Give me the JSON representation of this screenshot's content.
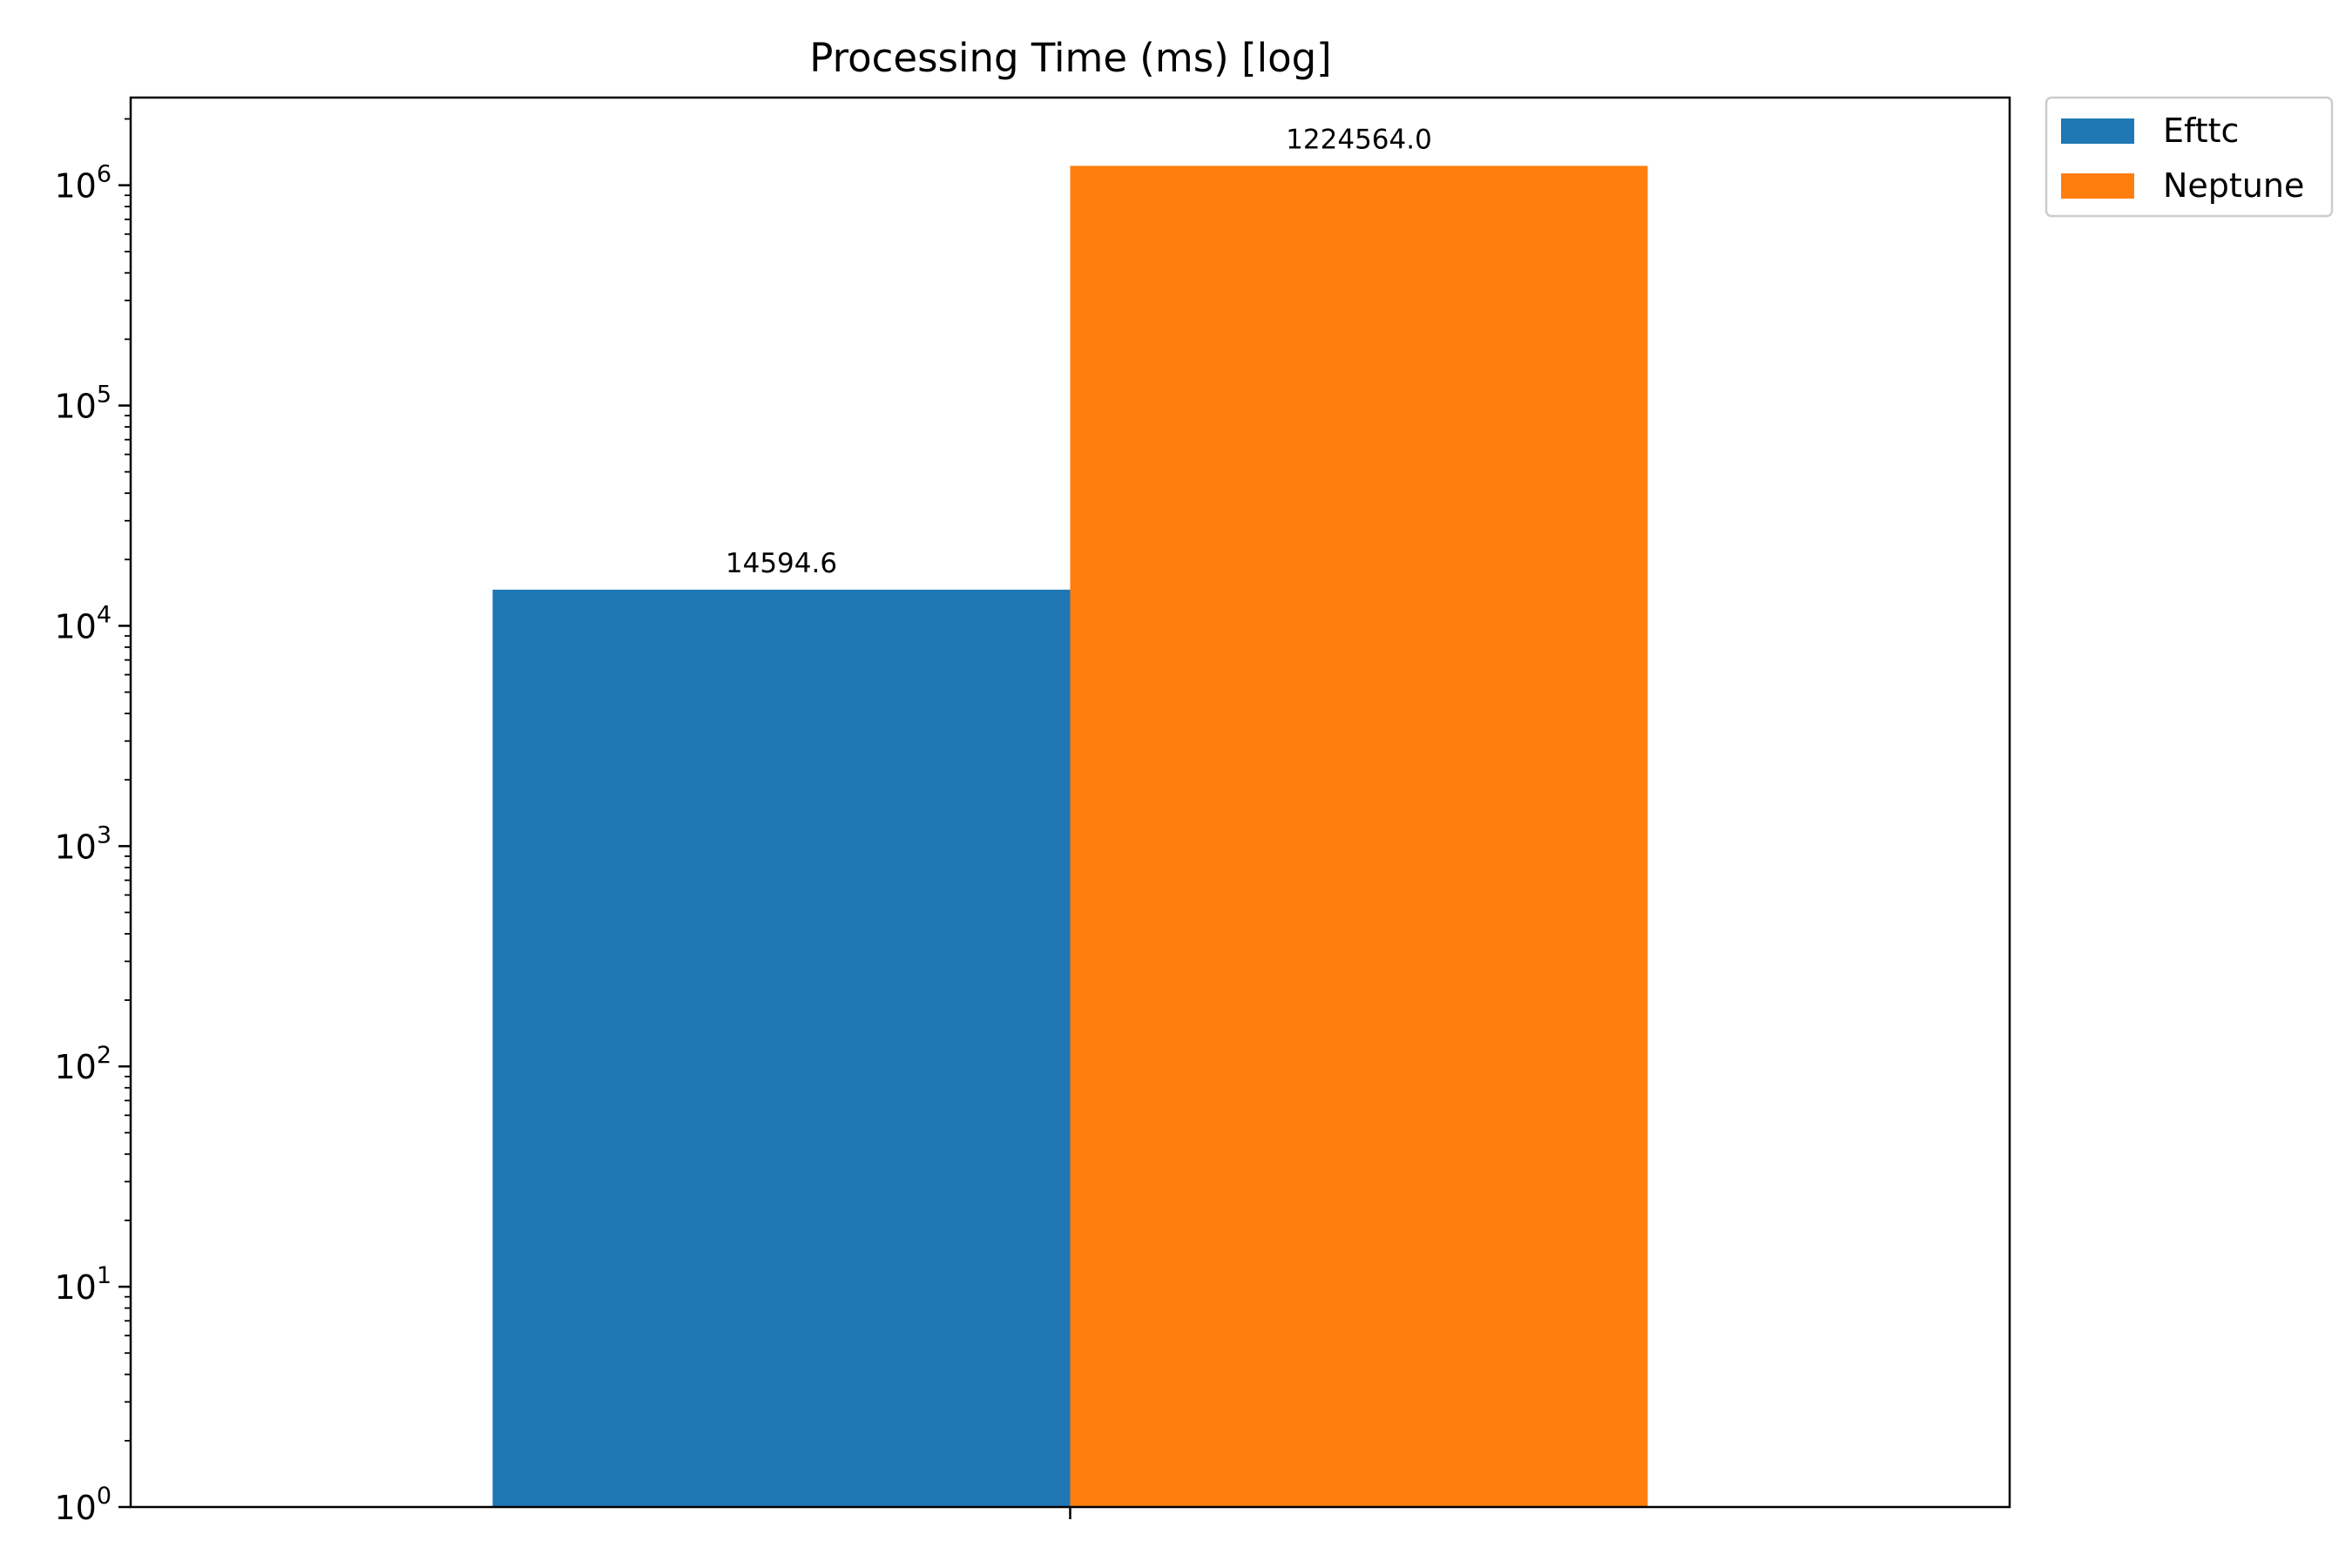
{
  "chart_data": {
    "type": "bar",
    "title": "Processing Time (ms) [log]",
    "xlabel": "",
    "ylabel": "",
    "yscale": "log",
    "ylim": [
      1,
      2500000
    ],
    "yticks": [
      {
        "value": 1,
        "base": "10",
        "exp": "0"
      },
      {
        "value": 10,
        "base": "10",
        "exp": "1"
      },
      {
        "value": 100,
        "base": "10",
        "exp": "2"
      },
      {
        "value": 1000,
        "base": "10",
        "exp": "3"
      },
      {
        "value": 10000,
        "base": "10",
        "exp": "4"
      },
      {
        "value": 100000,
        "base": "10",
        "exp": "5"
      },
      {
        "value": 1000000,
        "base": "10",
        "exp": "6"
      }
    ],
    "categories": [
      ""
    ],
    "series": [
      {
        "name": "Efttc",
        "color": "#1f77b4",
        "values": [
          14594.6
        ],
        "labels": [
          "14594.6"
        ]
      },
      {
        "name": "Neptune",
        "color": "#ff7f0e",
        "values": [
          1224564.0
        ],
        "labels": [
          "1224564.0"
        ]
      }
    ],
    "legend": "outside-top-right",
    "grid": false
  }
}
